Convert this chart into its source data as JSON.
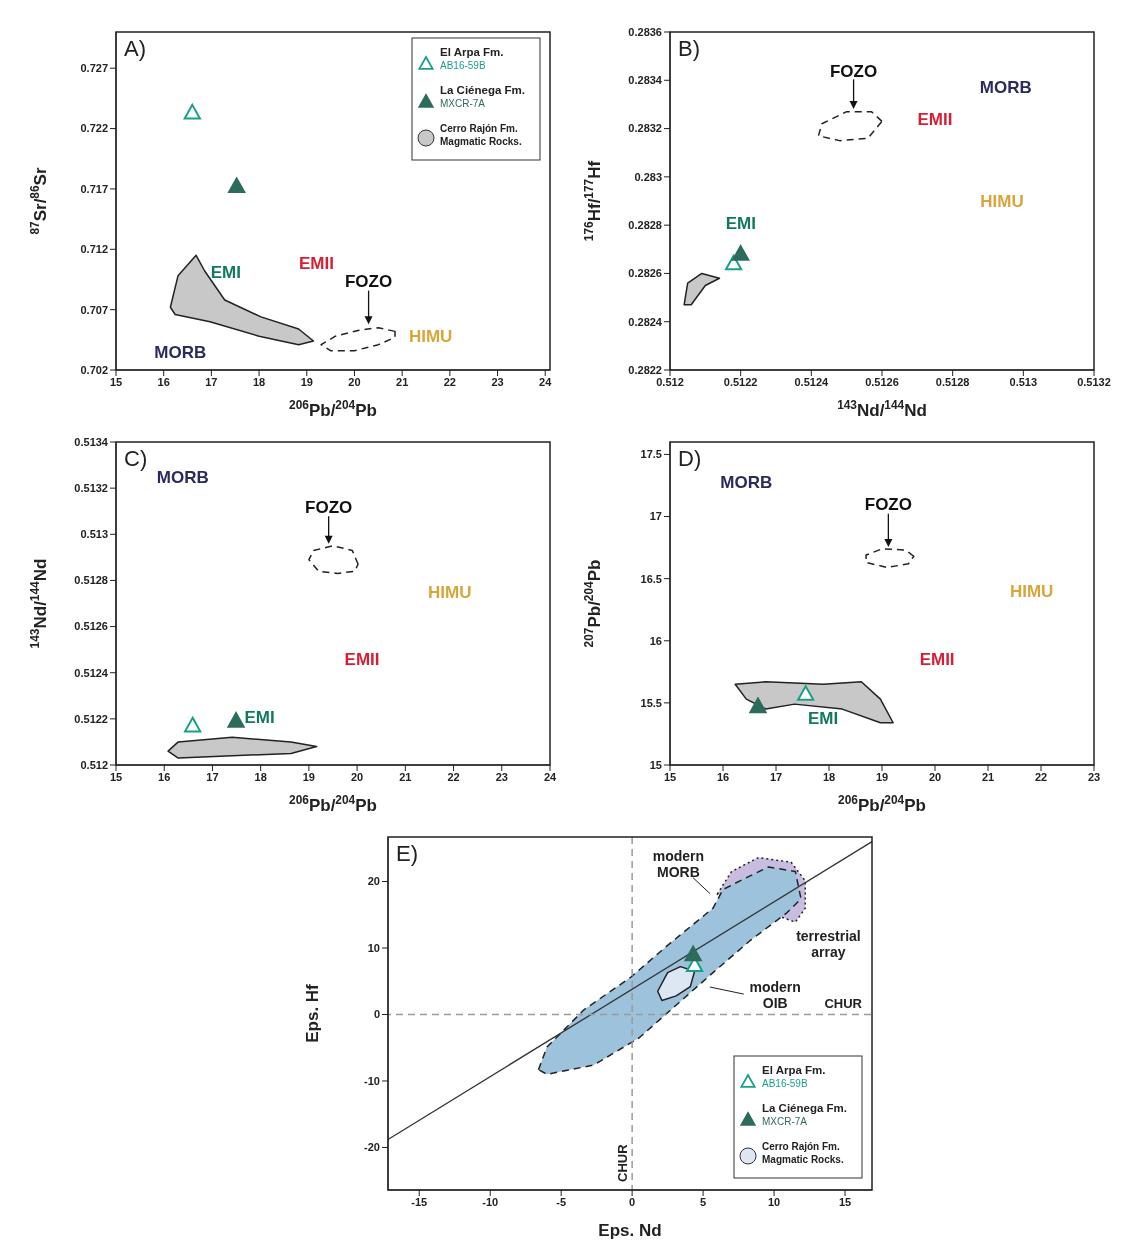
{
  "chart_data": [
    {
      "type": "scatter",
      "title": "A)",
      "xlabel": "$^{206}$Pb/$^{204}$Pb",
      "ylabel": "$^{87}$Sr/$^{86}$Sr",
      "xlim": [
        15,
        24.1
      ],
      "ylim": [
        0.702,
        0.73
      ],
      "xticks": [
        15,
        16,
        17,
        18,
        19,
        20,
        21,
        22,
        23,
        24
      ],
      "yticks": [
        0.702,
        0.707,
        0.712,
        0.717,
        0.722,
        0.727
      ],
      "legend": "top right",
      "series": [
        {
          "name": "El Arpa Fm.\nAB16-59B",
          "type": "scatter",
          "marker": "triangle",
          "color": "#1a9e8c",
          "x": [
            16.6
          ],
          "values": [
            0.7233
          ]
        },
        {
          "name": "La Ciénega Fm.\nMXCR-7A",
          "type": "scatter",
          "marker": "triangle",
          "color": "#2d6b5c",
          "x": [
            17.53
          ],
          "values": [
            0.7172
          ]
        },
        {
          "name": "Cerro Rajón Fm.\nMagmatic Rocks.",
          "type": "area",
          "color": "#c8c8c8",
          "line_style": "solid",
          "x": [
            16.14,
            16.3,
            16.68,
            16.86,
            17.28,
            18.04,
            18.83,
            19.14,
            18.83,
            18,
            16.97,
            16.24
          ],
          "values": [
            0.7072,
            0.7098,
            0.7115,
            0.7102,
            0.7078,
            0.7064,
            0.7054,
            0.7044,
            0.7041,
            0.7048,
            0.706,
            0.7066
          ]
        },
        {
          "type": "area",
          "color": "#ffffff",
          "line_style": "dashed",
          "x": [
            20.85,
            20.5,
            20.1,
            19.6,
            19.3,
            19.5,
            20,
            20.5,
            20.85
          ],
          "values": [
            0.7052,
            0.7055,
            0.7053,
            0.7048,
            0.7041,
            0.7036,
            0.7036,
            0.7041,
            0.7047
          ]
        }
      ],
      "annotations": [
        "MORB",
        "EMI",
        "EMII",
        "HIMU",
        "FOZO"
      ]
    },
    {
      "type": "scatter",
      "title": "B)",
      "xlabel": "$^{143}$Nd/$^{144}$Nd",
      "ylabel": "$^{176}$Hf/$^{177}$Hf",
      "xlim": [
        0.512,
        0.5132
      ],
      "ylim": [
        0.2822,
        0.2836
      ],
      "xticks": [
        0.512,
        0.5122,
        0.5124,
        0.5126,
        0.5128,
        0.513,
        0.5132
      ],
      "yticks": [
        0.2822,
        0.2824,
        0.2826,
        0.2828,
        0.283,
        0.2832,
        0.2834,
        0.2836
      ],
      "series": [
        {
          "type": "scatter",
          "marker": "triangle",
          "color": "#1a9e8c",
          "x": [
            0.51218
          ],
          "values": [
            0.28264
          ]
        },
        {
          "type": "scatter",
          "marker": "triangle",
          "color": "#2d6b5c",
          "x": [
            0.5122
          ],
          "values": [
            0.28268
          ]
        },
        {
          "type": "area",
          "color": "#c8c8c8",
          "line_style": "solid",
          "x": [
            0.51204,
            0.51205,
            0.51209,
            0.51214,
            0.5121,
            0.51206
          ],
          "values": [
            0.28247,
            0.28256,
            0.2826,
            0.28258,
            0.28255,
            0.28247
          ]
        },
        {
          "type": "area",
          "color": "#ffffff",
          "line_style": "dashed",
          "x": [
            0.5126,
            0.51257,
            0.5125,
            0.51243,
            0.51242,
            0.51248,
            0.51256
          ],
          "values": [
            0.28323,
            0.28327,
            0.28327,
            0.28322,
            0.28317,
            0.28315,
            0.28316
          ]
        }
      ],
      "annotations": [
        "MORB",
        "EMI",
        "EMII",
        "HIMU",
        "FOZO"
      ]
    },
    {
      "type": "scatter",
      "title": "C)",
      "xlabel": "$^{206}$Pb/$^{204}$Pb",
      "ylabel": "$^{143}$Nd/$^{144}$Nd",
      "xlim": [
        15,
        24
      ],
      "ylim": [
        0.512,
        0.5134
      ],
      "xticks": [
        15,
        16,
        17,
        18,
        19,
        20,
        21,
        22,
        23,
        24
      ],
      "yticks": [
        0.512,
        0.5122,
        0.5124,
        0.5126,
        0.5128,
        0.513,
        0.5132,
        0.5134
      ],
      "series": [
        {
          "type": "scatter",
          "marker": "triangle",
          "color": "#1a9e8c",
          "x": [
            16.59
          ],
          "values": [
            0.51217
          ]
        },
        {
          "type": "scatter",
          "marker": "triangle",
          "color": "#2d6b5c",
          "x": [
            17.49
          ],
          "values": [
            0.51219
          ]
        },
        {
          "type": "area",
          "color": "#c8c8c8",
          "line_style": "solid",
          "x": [
            16.08,
            16.29,
            17.41,
            18.63,
            19.16,
            18.63,
            17.41,
            16.29
          ],
          "values": [
            0.51206,
            0.5121,
            0.51212,
            0.5121,
            0.51208,
            0.51205,
            0.51204,
            0.51203
          ]
        },
        {
          "type": "area",
          "color": "#ffffff",
          "line_style": "dashed",
          "x": [
            20.02,
            19.9,
            19.5,
            19.1,
            19,
            19.2,
            19.6,
            19.95
          ],
          "values": [
            0.51287,
            0.51293,
            0.51295,
            0.51293,
            0.51289,
            0.51284,
            0.51283,
            0.51284
          ]
        }
      ],
      "annotations": [
        "MORB",
        "EMI",
        "EMII",
        "HIMU",
        "FOZO"
      ]
    },
    {
      "type": "scatter",
      "title": "D)",
      "xlabel": "$^{206}$Pb/$^{204}$Pb",
      "ylabel": "$^{207}$Pb/$^{204}$Pb",
      "xlim": [
        15,
        23
      ],
      "ylim": [
        15,
        17.6
      ],
      "xticks": [
        15,
        16,
        17,
        18,
        19,
        20,
        21,
        22,
        23
      ],
      "yticks": [
        15,
        15.5,
        16,
        16.5,
        17,
        17.5
      ],
      "series": [
        {
          "type": "scatter",
          "marker": "triangle",
          "color": "#1a9e8c",
          "x": [
            17.56
          ],
          "values": [
            15.57
          ]
        },
        {
          "type": "scatter",
          "marker": "triangle",
          "color": "#2d6b5c",
          "x": [
            16.66
          ],
          "values": [
            15.47
          ]
        },
        {
          "type": "area",
          "color": "#c8c8c8",
          "line_style": "solid",
          "x": [
            16.23,
            16.81,
            17.89,
            18.61,
            18.97,
            19.21,
            18.97,
            18.25,
            17.35,
            16.81,
            16.44
          ],
          "values": [
            15.65,
            15.67,
            15.65,
            15.67,
            15.53,
            15.34,
            15.34,
            15.45,
            15.49,
            15.45,
            15.53
          ]
        },
        {
          "type": "area",
          "color": "#ffffff",
          "line_style": "dashed",
          "x": [
            19.6,
            19.45,
            19,
            18.7,
            18.7,
            19.1,
            19.5
          ],
          "values": [
            16.68,
            16.73,
            16.74,
            16.69,
            16.63,
            16.59,
            16.62
          ]
        }
      ],
      "annotations": [
        "MORB",
        "EMI",
        "EMII",
        "HIMU",
        "FOZO"
      ]
    },
    {
      "type": "scatter",
      "title": "E)",
      "xlabel": "Eps. Nd",
      "ylabel": "Eps. Hf",
      "xlim": [
        -17.2,
        16.9
      ],
      "ylim": [
        -26.4,
        26.7
      ],
      "xticks": [
        -15,
        -10,
        -5,
        0,
        5,
        10,
        15
      ],
      "yticks": [
        -20,
        -10,
        0,
        10,
        20
      ],
      "legend": "bottom right",
      "ref_lines": [
        {
          "axis": "x",
          "value": 0,
          "label": "CHUR",
          "color": "#9a9a9a",
          "line_style": "dashed"
        },
        {
          "axis": "y",
          "value": 0,
          "label": "CHUR",
          "color": "#9a9a9a",
          "line_style": "dashed"
        }
      ],
      "series": [
        {
          "type": "area",
          "color": "#c8bde0",
          "line_style": "dotted",
          "x": [
            6,
            7,
            8.9,
            11.2,
            12.2,
            12.2,
            11.5
          ],
          "values": [
            18.1,
            21.5,
            23.6,
            22.9,
            20.1,
            16,
            13.9
          ]
        },
        {
          "type": "area",
          "color": "#9cc2dc",
          "line_style": "dashed",
          "x": [
            -6.6,
            -6,
            -3.4,
            -0.1,
            2.5,
            5.7,
            6.4,
            7.6,
            9.6,
            11.5,
            11.9,
            10.9,
            8.3,
            5.7,
            3.1,
            0.5,
            -2.7,
            -6
          ],
          "values": [
            -8.3,
            -4.9,
            0.7,
            5.6,
            10.4,
            16,
            18.8,
            20.1,
            22.2,
            21.5,
            17.4,
            15.3,
            11.1,
            6.3,
            1.4,
            -3.5,
            -7.6,
            -9
          ]
        },
        {
          "type": "line",
          "color": "#333333",
          "line_style": "solid",
          "x": [
            -17.2,
            16.9
          ],
          "values": [
            -18.8,
            26
          ]
        },
        {
          "name": "El Arpa Fm.\nAB16-59B",
          "type": "scatter",
          "marker": "triangle",
          "color": "#1a9e8c",
          "x": [
            4.4
          ],
          "values": [
            7.4
          ]
        },
        {
          "name": "La Ciénega Fm.\nMXCR-7A",
          "type": "scatter",
          "marker": "triangle",
          "color": "#2d6b5c",
          "x": [
            4.3
          ],
          "values": [
            9
          ]
        },
        {
          "name": "Cerro Rajón Fm.\nMagmatic Rocks.",
          "type": "area",
          "color": "#dde7f1",
          "line_style": "solid",
          "x": [
            1.8,
            2.5,
            3.4,
            4.4,
            4.1,
            3.1,
            2.1
          ],
          "values": [
            3.5,
            6.3,
            7.2,
            6.5,
            4.2,
            2.8,
            2.1
          ]
        }
      ],
      "annotations": [
        "modern MORB",
        "modern OIB",
        "terrestrial array"
      ]
    }
  ]
}
